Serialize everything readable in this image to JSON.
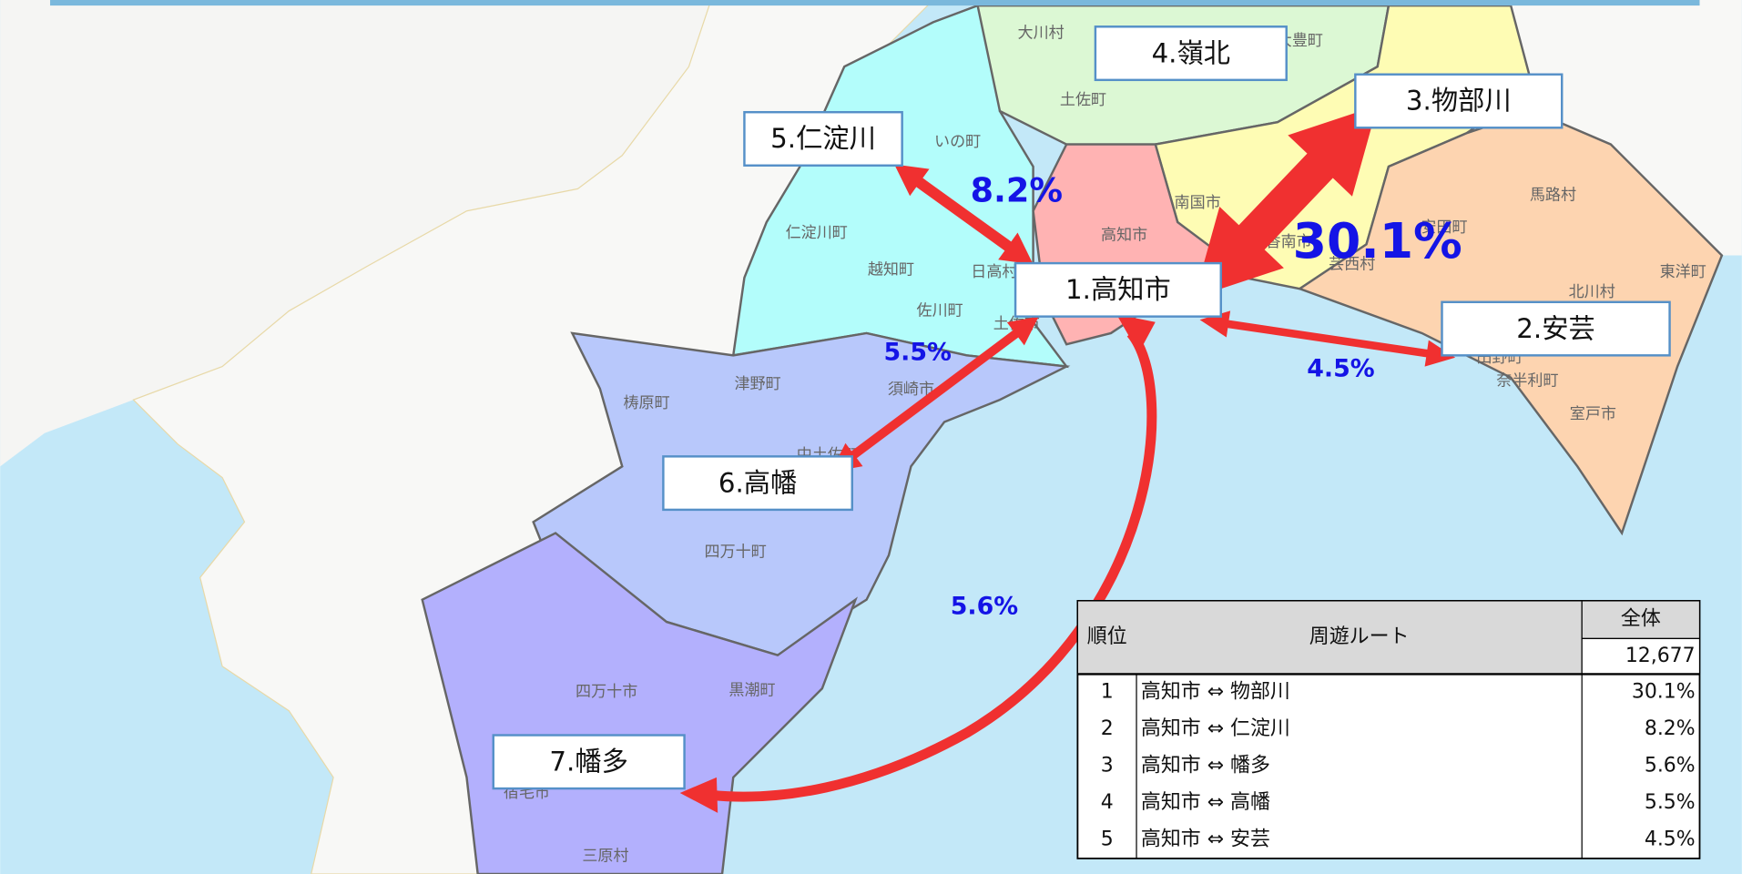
{
  "regions": [
    {
      "label": "1.高知市"
    },
    {
      "label": "2.安芸"
    },
    {
      "label": "3.物部川"
    },
    {
      "label": "4.嶺北"
    },
    {
      "label": "5.仁淀川"
    },
    {
      "label": "6.高幡"
    },
    {
      "label": "7.幡多"
    }
  ],
  "flows": [
    {
      "label": "30.1%"
    },
    {
      "label": "8.2%"
    },
    {
      "label": "5.6%"
    },
    {
      "label": "5.5%"
    },
    {
      "label": "4.5%"
    }
  ],
  "place_names": [
    "大川村",
    "大豊町",
    "土佐町",
    "いの町",
    "仁淀川町",
    "越知町",
    "日高村",
    "佐川町",
    "土佐市",
    "高知市",
    "南国市",
    "香南市",
    "芸西村",
    "安田町",
    "馬路村",
    "東洋町",
    "北川村",
    "田野町",
    "奈半利町",
    "室戸市",
    "梼原町",
    "津野町",
    "須崎市",
    "中土佐町",
    "四万十町",
    "四万十市",
    "黒潮町",
    "宿毛市",
    "三原村"
  ],
  "table": {
    "header": [
      "順位",
      "周遊ルート",
      "全体"
    ],
    "total": "12,677",
    "rows": [
      [
        "1",
        "高知市 ⇔ 物部川",
        "30.1%"
      ],
      [
        "2",
        "高知市 ⇔ 仁淀川",
        "8.2%"
      ],
      [
        "3",
        "高知市 ⇔ 幡多",
        "5.6%"
      ],
      [
        "4",
        "高知市 ⇔ 高幡",
        "5.5%"
      ],
      [
        "5",
        "高知市 ⇔ 安芸",
        "4.5%"
      ]
    ]
  }
}
